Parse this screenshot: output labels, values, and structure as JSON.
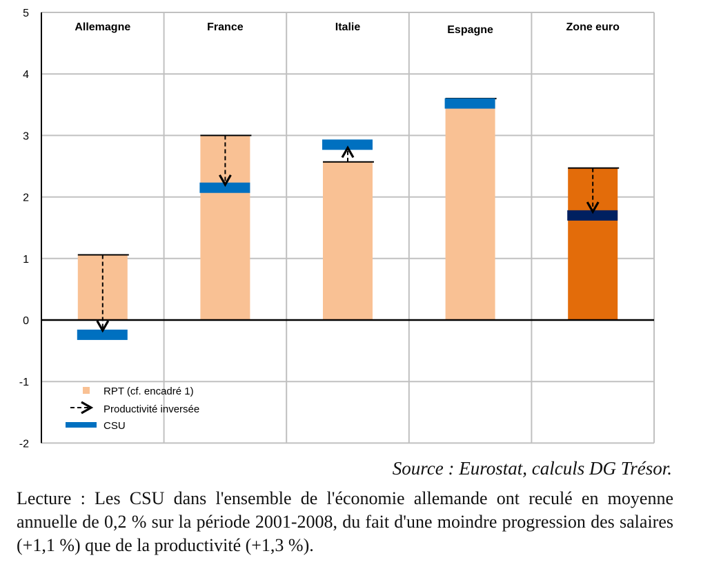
{
  "chart_data": {
    "type": "bar",
    "categories": [
      "Allemagne",
      "France",
      "Italie",
      "Espagne",
      "Zone euro"
    ],
    "ylim": [
      -2,
      5
    ],
    "yticks": [
      -2,
      -1,
      0,
      1,
      2,
      3,
      4,
      5
    ],
    "grid": true,
    "legend_position": "bottom-left",
    "legend": [
      "RPT (cf. encadré 1)",
      "Productivité inversée",
      "CSU"
    ],
    "series": [
      {
        "name": "RPT (cf. encadré 1)",
        "values": [
          1.06,
          3.0,
          2.57,
          3.6,
          2.47
        ]
      },
      {
        "name": "Productivité inversée",
        "from": [
          1.06,
          3.0,
          2.57,
          3.6,
          2.47
        ],
        "to": [
          -0.17,
          2.2,
          2.8,
          3.6,
          1.76
        ]
      },
      {
        "name": "CSU",
        "values": [
          -0.24,
          2.15,
          2.85,
          3.52,
          1.7
        ]
      }
    ],
    "colors": {
      "rpt": "#F9C194",
      "csu": "#0070C0",
      "rpt_highlight": "#E36C0A",
      "csu_highlight": "#002060"
    }
  },
  "source": "Source : Eurostat, calculs DG Trésor.",
  "lecture": "Lecture : Les CSU dans l'ensemble de l'économie allemande ont reculé en moyenne annuelle de 0,2 % sur la période 2001-2008, du fait d'une moindre progression des salaires (+1,1 %) que de la productivité (+1,3 %)."
}
